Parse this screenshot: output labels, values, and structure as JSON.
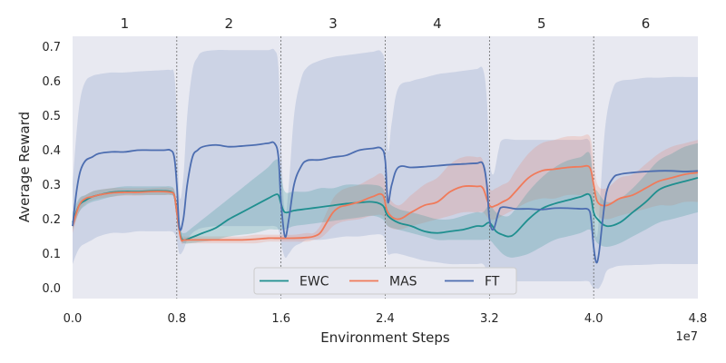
{
  "chart_data": {
    "type": "line",
    "xlabel": "Environment Steps",
    "ylabel": "Average Reward",
    "x_scale_label": "1e7",
    "xlim": [
      0,
      4.8
    ],
    "ylim": [
      -0.03,
      0.73
    ],
    "x_ticks": [
      0.0,
      0.8,
      1.6,
      2.4,
      3.2,
      4.0,
      4.8
    ],
    "x_tick_labels": [
      "0.0",
      "0.8",
      "1.6",
      "2.4",
      "3.2",
      "4.0",
      "4.8"
    ],
    "y_ticks": [
      0.0,
      0.1,
      0.2,
      0.3,
      0.4,
      0.5,
      0.6,
      0.7
    ],
    "y_tick_labels": [
      "0.0",
      "0.1",
      "0.2",
      "0.3",
      "0.4",
      "0.5",
      "0.6",
      "0.7"
    ],
    "task_boundaries": [
      0.8,
      1.6,
      2.4,
      3.2,
      4.0
    ],
    "task_labels": [
      "1",
      "2",
      "3",
      "4",
      "5",
      "6"
    ],
    "grid": false,
    "legend_position": "bottom-center",
    "background": "#e8e9f1",
    "series": [
      {
        "name": "EWC",
        "color": "#1f8f8f",
        "x": [
          0,
          0.05,
          0.1,
          0.15,
          0.2,
          0.3,
          0.4,
          0.5,
          0.6,
          0.7,
          0.75,
          0.78,
          0.8,
          0.83,
          0.86,
          0.9,
          1.0,
          1.1,
          1.2,
          1.3,
          1.4,
          1.5,
          1.55,
          1.58,
          1.6,
          1.63,
          1.7,
          1.8,
          1.9,
          2.0,
          2.1,
          2.2,
          2.3,
          2.38,
          2.42,
          2.5,
          2.6,
          2.7,
          2.8,
          2.9,
          3.0,
          3.1,
          3.15,
          3.2,
          3.25,
          3.3,
          3.35,
          3.4,
          3.5,
          3.6,
          3.7,
          3.8,
          3.9,
          3.97,
          4.0,
          4.03,
          4.1,
          4.2,
          4.3,
          4.4,
          4.5,
          4.6,
          4.7,
          4.8
        ],
        "y": [
          0.19,
          0.24,
          0.255,
          0.265,
          0.27,
          0.278,
          0.28,
          0.28,
          0.282,
          0.282,
          0.28,
          0.27,
          0.22,
          0.15,
          0.14,
          0.145,
          0.16,
          0.175,
          0.2,
          0.22,
          0.24,
          0.26,
          0.27,
          0.27,
          0.245,
          0.22,
          0.225,
          0.23,
          0.235,
          0.24,
          0.245,
          0.248,
          0.25,
          0.24,
          0.21,
          0.19,
          0.18,
          0.165,
          0.16,
          0.165,
          0.17,
          0.18,
          0.18,
          0.19,
          0.165,
          0.155,
          0.15,
          0.16,
          0.2,
          0.23,
          0.245,
          0.255,
          0.265,
          0.27,
          0.22,
          0.2,
          0.18,
          0.19,
          0.22,
          0.25,
          0.285,
          0.3,
          0.31,
          0.32
        ],
        "lower": [
          0.17,
          0.22,
          0.24,
          0.25,
          0.255,
          0.265,
          0.27,
          0.27,
          0.27,
          0.27,
          0.27,
          0.26,
          0.2,
          0.14,
          0.13,
          0.13,
          0.135,
          0.14,
          0.15,
          0.155,
          0.16,
          0.17,
          0.17,
          0.17,
          0.17,
          0.17,
          0.18,
          0.185,
          0.19,
          0.195,
          0.2,
          0.205,
          0.21,
          0.2,
          0.18,
          0.17,
          0.16,
          0.15,
          0.14,
          0.14,
          0.14,
          0.14,
          0.14,
          0.14,
          0.12,
          0.1,
          0.09,
          0.09,
          0.1,
          0.12,
          0.14,
          0.15,
          0.16,
          0.17,
          0.15,
          0.13,
          0.12,
          0.13,
          0.15,
          0.17,
          0.19,
          0.2,
          0.21,
          0.22
        ],
        "upper": [
          0.22,
          0.26,
          0.27,
          0.28,
          0.285,
          0.29,
          0.295,
          0.295,
          0.295,
          0.295,
          0.295,
          0.285,
          0.24,
          0.17,
          0.16,
          0.17,
          0.2,
          0.23,
          0.26,
          0.29,
          0.32,
          0.35,
          0.37,
          0.37,
          0.33,
          0.28,
          0.28,
          0.28,
          0.29,
          0.29,
          0.3,
          0.3,
          0.3,
          0.29,
          0.25,
          0.23,
          0.22,
          0.21,
          0.2,
          0.2,
          0.21,
          0.22,
          0.22,
          0.24,
          0.22,
          0.21,
          0.21,
          0.23,
          0.28,
          0.32,
          0.35,
          0.37,
          0.38,
          0.39,
          0.3,
          0.28,
          0.25,
          0.26,
          0.29,
          0.33,
          0.37,
          0.39,
          0.41,
          0.42
        ]
      },
      {
        "name": "MAS",
        "color": "#f07a5a",
        "x": [
          0,
          0.05,
          0.1,
          0.15,
          0.2,
          0.3,
          0.4,
          0.5,
          0.6,
          0.7,
          0.75,
          0.78,
          0.8,
          0.83,
          0.86,
          0.9,
          1.0,
          1.1,
          1.2,
          1.3,
          1.4,
          1.5,
          1.55,
          1.6,
          1.7,
          1.8,
          1.85,
          1.9,
          1.95,
          2.0,
          2.05,
          2.1,
          2.2,
          2.3,
          2.38,
          2.42,
          2.5,
          2.6,
          2.7,
          2.8,
          2.9,
          3.0,
          3.1,
          3.15,
          3.2,
          3.25,
          3.3,
          3.35,
          3.4,
          3.5,
          3.6,
          3.7,
          3.8,
          3.9,
          3.97,
          4.0,
          4.03,
          4.1,
          4.2,
          4.3,
          4.4,
          4.5,
          4.6,
          4.7,
          4.8
        ],
        "y": [
          0.18,
          0.24,
          0.26,
          0.265,
          0.27,
          0.276,
          0.278,
          0.278,
          0.28,
          0.28,
          0.278,
          0.27,
          0.22,
          0.145,
          0.14,
          0.14,
          0.14,
          0.14,
          0.14,
          0.14,
          0.142,
          0.145,
          0.145,
          0.145,
          0.145,
          0.147,
          0.15,
          0.16,
          0.19,
          0.22,
          0.235,
          0.24,
          0.25,
          0.265,
          0.27,
          0.22,
          0.2,
          0.22,
          0.24,
          0.25,
          0.28,
          0.295,
          0.295,
          0.29,
          0.24,
          0.24,
          0.25,
          0.26,
          0.28,
          0.32,
          0.34,
          0.345,
          0.35,
          0.352,
          0.35,
          0.3,
          0.25,
          0.24,
          0.26,
          0.27,
          0.29,
          0.31,
          0.32,
          0.33,
          0.335
        ],
        "lower": [
          0.16,
          0.22,
          0.245,
          0.255,
          0.26,
          0.265,
          0.268,
          0.268,
          0.27,
          0.27,
          0.27,
          0.26,
          0.2,
          0.135,
          0.13,
          0.13,
          0.13,
          0.13,
          0.13,
          0.13,
          0.13,
          0.135,
          0.135,
          0.135,
          0.135,
          0.135,
          0.14,
          0.145,
          0.16,
          0.18,
          0.19,
          0.195,
          0.2,
          0.21,
          0.21,
          0.18,
          0.17,
          0.18,
          0.19,
          0.2,
          0.21,
          0.22,
          0.22,
          0.22,
          0.2,
          0.2,
          0.21,
          0.22,
          0.23,
          0.25,
          0.26,
          0.26,
          0.27,
          0.27,
          0.27,
          0.24,
          0.21,
          0.2,
          0.21,
          0.22,
          0.23,
          0.24,
          0.24,
          0.25,
          0.25
        ],
        "upper": [
          0.2,
          0.255,
          0.27,
          0.28,
          0.285,
          0.29,
          0.29,
          0.29,
          0.29,
          0.292,
          0.29,
          0.285,
          0.24,
          0.16,
          0.15,
          0.15,
          0.15,
          0.15,
          0.15,
          0.15,
          0.155,
          0.155,
          0.155,
          0.155,
          0.155,
          0.16,
          0.16,
          0.18,
          0.22,
          0.26,
          0.28,
          0.29,
          0.3,
          0.32,
          0.33,
          0.27,
          0.24,
          0.27,
          0.3,
          0.32,
          0.36,
          0.38,
          0.38,
          0.37,
          0.29,
          0.29,
          0.3,
          0.31,
          0.34,
          0.39,
          0.42,
          0.43,
          0.44,
          0.44,
          0.44,
          0.37,
          0.3,
          0.29,
          0.32,
          0.33,
          0.36,
          0.39,
          0.41,
          0.42,
          0.43
        ]
      },
      {
        "name": "FT",
        "color": "#4c6db0",
        "x": [
          0,
          0.03,
          0.06,
          0.1,
          0.15,
          0.2,
          0.3,
          0.4,
          0.5,
          0.6,
          0.7,
          0.75,
          0.78,
          0.8,
          0.82,
          0.85,
          0.88,
          0.92,
          0.96,
          1.0,
          1.1,
          1.2,
          1.3,
          1.4,
          1.5,
          1.55,
          1.58,
          1.6,
          1.63,
          1.66,
          1.7,
          1.75,
          1.8,
          1.9,
          2.0,
          2.1,
          2.2,
          2.3,
          2.37,
          2.4,
          2.42,
          2.45,
          2.5,
          2.6,
          2.7,
          2.8,
          2.9,
          3.0,
          3.1,
          3.15,
          3.18,
          3.2,
          3.23,
          3.27,
          3.3,
          3.4,
          3.5,
          3.6,
          3.7,
          3.8,
          3.9,
          3.96,
          3.98,
          4.0,
          4.02,
          4.04,
          4.07,
          4.1,
          4.15,
          4.2,
          4.3,
          4.4,
          4.5,
          4.6,
          4.7,
          4.8
        ],
        "y": [
          0.18,
          0.28,
          0.34,
          0.37,
          0.38,
          0.39,
          0.395,
          0.395,
          0.4,
          0.4,
          0.4,
          0.4,
          0.38,
          0.3,
          0.175,
          0.2,
          0.3,
          0.38,
          0.4,
          0.41,
          0.415,
          0.41,
          0.412,
          0.415,
          0.42,
          0.42,
          0.38,
          0.25,
          0.15,
          0.2,
          0.3,
          0.35,
          0.37,
          0.372,
          0.38,
          0.385,
          0.4,
          0.405,
          0.405,
          0.37,
          0.25,
          0.3,
          0.35,
          0.35,
          0.352,
          0.355,
          0.358,
          0.36,
          0.362,
          0.36,
          0.3,
          0.2,
          0.17,
          0.22,
          0.235,
          0.23,
          0.23,
          0.228,
          0.232,
          0.232,
          0.23,
          0.228,
          0.2,
          0.12,
          0.075,
          0.1,
          0.2,
          0.28,
          0.32,
          0.33,
          0.335,
          0.338,
          0.34,
          0.34,
          0.338,
          0.34
        ],
        "lower": [
          0.07,
          0.1,
          0.12,
          0.13,
          0.14,
          0.15,
          0.16,
          0.16,
          0.165,
          0.165,
          0.165,
          0.165,
          0.16,
          0.14,
          0.1,
          0.11,
          0.14,
          0.16,
          0.17,
          0.175,
          0.18,
          0.18,
          0.18,
          0.18,
          0.18,
          0.18,
          0.17,
          0.13,
          0.09,
          0.1,
          0.12,
          0.13,
          0.14,
          0.14,
          0.145,
          0.15,
          0.15,
          0.155,
          0.155,
          0.14,
          0.1,
          0.1,
          0.1,
          0.09,
          0.08,
          0.075,
          0.07,
          0.07,
          0.07,
          0.07,
          0.05,
          0.02,
          0.01,
          0.02,
          0.02,
          0.02,
          0.02,
          0.02,
          0.02,
          0.02,
          0.02,
          0.02,
          0.01,
          0.0,
          0.0,
          0.0,
          0.02,
          0.05,
          0.06,
          0.065,
          0.067,
          0.068,
          0.07,
          0.07,
          0.07,
          0.07
        ],
        "upper": [
          0.3,
          0.45,
          0.55,
          0.6,
          0.615,
          0.62,
          0.625,
          0.625,
          0.628,
          0.63,
          0.632,
          0.632,
          0.62,
          0.5,
          0.27,
          0.32,
          0.5,
          0.63,
          0.67,
          0.685,
          0.69,
          0.69,
          0.69,
          0.69,
          0.69,
          0.69,
          0.64,
          0.42,
          0.22,
          0.3,
          0.5,
          0.6,
          0.64,
          0.66,
          0.67,
          0.675,
          0.68,
          0.685,
          0.685,
          0.63,
          0.4,
          0.48,
          0.58,
          0.6,
          0.61,
          0.62,
          0.625,
          0.63,
          0.635,
          0.635,
          0.55,
          0.38,
          0.33,
          0.4,
          0.43,
          0.43,
          0.43,
          0.43,
          0.43,
          0.43,
          0.43,
          0.43,
          0.39,
          0.24,
          0.15,
          0.2,
          0.38,
          0.5,
          0.58,
          0.6,
          0.605,
          0.61,
          0.61,
          0.612,
          0.612,
          0.612
        ]
      }
    ]
  }
}
